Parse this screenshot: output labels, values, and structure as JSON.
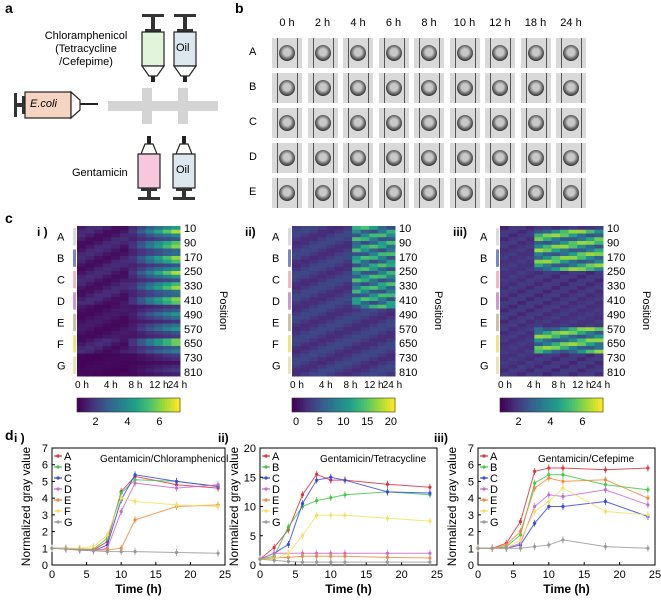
{
  "panel_a": {
    "letter": "a",
    "top_syringe_label": [
      "Chloramphenicol",
      "(Tetracycline",
      "/Cefepime)"
    ],
    "oil_label": "Oil",
    "ecoli_label": "E.coli",
    "gentamicin_label": "Gentamicin",
    "oil_label_bottom": "Oil"
  },
  "panel_b": {
    "letter": "b",
    "times": [
      "0 h",
      "2 h",
      "4 h",
      "6 h",
      "8 h",
      "10 h",
      "12 h",
      "18 h",
      "24 h"
    ],
    "rows": [
      "A",
      "B",
      "C",
      "D",
      "E"
    ]
  },
  "panel_c": {
    "letter": "c",
    "subpanels": [
      {
        "label": "i )",
        "colorbar_ticks": [
          "2",
          "4",
          "6"
        ]
      },
      {
        "label": "ii)",
        "colorbar_ticks": [
          "0",
          "5",
          "10",
          "15",
          "20"
        ]
      },
      {
        "label": "iii)",
        "colorbar_ticks": [
          "2",
          "4",
          "6"
        ]
      }
    ],
    "groups": [
      "A",
      "B",
      "C",
      "D",
      "E",
      "F",
      "G"
    ],
    "group_colors": [
      "#d9d9e8",
      "#7b86c9",
      "#f2b8c0",
      "#c89ad8",
      "#c9c3a2",
      "#f0e57a",
      "#e8e6a8"
    ],
    "positions": [
      "10",
      "90",
      "170",
      "250",
      "330",
      "410",
      "490",
      "570",
      "650",
      "730",
      "810"
    ],
    "position_label": "Position",
    "time_ticks": [
      "0 h",
      "4 h",
      "8 h",
      "12 h",
      "24 h"
    ]
  },
  "panel_d": {
    "letter": "d",
    "legend": [
      "A",
      "B",
      "C",
      "D",
      "E",
      "F",
      "G"
    ],
    "legend_colors": [
      "#e0303f",
      "#41c84a",
      "#3a48e6",
      "#c86bd0",
      "#f08a3c",
      "#f5e060",
      "#999999"
    ]
  },
  "chart_data": [
    {
      "type": "line",
      "panel": "d-i",
      "roman": "i )",
      "title": "Gentamicin/Chloramphenicol",
      "xlabel": "Time (h)",
      "ylabel": "Normalized gray value",
      "xlim": [
        0,
        25
      ],
      "ylim": [
        0,
        7
      ],
      "xticks": [
        "0",
        "5",
        "10",
        "15",
        "20",
        "25"
      ],
      "yticks": [
        "0",
        "1",
        "2",
        "3",
        "4",
        "5",
        "6",
        "7"
      ],
      "x": [
        0,
        2,
        4,
        6,
        8,
        10,
        12,
        18,
        24
      ],
      "series": [
        {
          "name": "A",
          "values": [
            1.0,
            1.0,
            0.95,
            0.9,
            1.4,
            4.4,
            5.3,
            4.8,
            4.6
          ]
        },
        {
          "name": "B",
          "values": [
            1.0,
            1.0,
            0.95,
            0.95,
            1.6,
            4.3,
            5.1,
            5.0,
            4.7
          ]
        },
        {
          "name": "C",
          "values": [
            1.0,
            1.0,
            0.9,
            0.85,
            1.2,
            3.9,
            5.4,
            5.0,
            4.7
          ]
        },
        {
          "name": "D",
          "values": [
            1.0,
            0.95,
            0.9,
            0.85,
            1.0,
            3.2,
            4.9,
            4.6,
            4.8
          ]
        },
        {
          "name": "E",
          "values": [
            1.0,
            1.0,
            0.95,
            0.9,
            0.9,
            1.0,
            2.7,
            3.5,
            3.6
          ]
        },
        {
          "name": "F",
          "values": [
            1.0,
            1.0,
            1.0,
            1.1,
            1.8,
            4.0,
            3.8,
            3.6,
            3.5
          ]
        },
        {
          "name": "G",
          "values": [
            1.0,
            0.95,
            0.9,
            0.85,
            0.8,
            0.8,
            0.8,
            0.75,
            0.7
          ]
        }
      ]
    },
    {
      "type": "line",
      "panel": "d-ii",
      "roman": "ii)",
      "title": "Gentamicin/Tetracycline",
      "xlabel": "Time (h)",
      "ylabel": "Normalized gray value",
      "xlim": [
        0,
        25
      ],
      "ylim": [
        0,
        20
      ],
      "xticks": [
        "0",
        "5",
        "10",
        "15",
        "20",
        "25"
      ],
      "yticks": [
        "0",
        "5",
        "10",
        "15",
        "20"
      ],
      "x": [
        0,
        2,
        4,
        6,
        8,
        10,
        12,
        18,
        24
      ],
      "series": [
        {
          "name": "A",
          "values": [
            1.0,
            3.0,
            6.0,
            12.0,
            15.5,
            14.5,
            14.5,
            13.8,
            13.3
          ]
        },
        {
          "name": "B",
          "values": [
            1.0,
            1.5,
            6.5,
            10.0,
            11.0,
            11.5,
            12.0,
            12.5,
            12.0
          ]
        },
        {
          "name": "C",
          "values": [
            1.0,
            2.0,
            3.5,
            10.5,
            14.5,
            15.0,
            14.5,
            12.5,
            12.3
          ]
        },
        {
          "name": "D",
          "values": [
            1.0,
            2.0,
            2.0,
            2.0,
            2.0,
            2.0,
            2.0,
            2.0,
            2.0
          ]
        },
        {
          "name": "E",
          "values": [
            1.0,
            1.2,
            1.3,
            1.5,
            1.5,
            1.5,
            1.5,
            1.3,
            1.2
          ]
        },
        {
          "name": "F",
          "values": [
            1.0,
            1.0,
            2.0,
            5.0,
            8.5,
            8.5,
            8.5,
            8.0,
            7.5
          ]
        },
        {
          "name": "G",
          "values": [
            1.0,
            0.8,
            0.6,
            0.5,
            0.5,
            0.5,
            0.5,
            0.5,
            0.5
          ]
        }
      ]
    },
    {
      "type": "line",
      "panel": "d-iii",
      "roman": "iii)",
      "title": "Gentamicin/Cefepime",
      "xlabel": "Time (h)",
      "ylabel": "Normalized gray value",
      "xlim": [
        0,
        25
      ],
      "ylim": [
        0,
        7
      ],
      "xticks": [
        "0",
        "5",
        "10",
        "15",
        "20",
        "25"
      ],
      "yticks": [
        "0",
        "1",
        "2",
        "3",
        "4",
        "5",
        "6",
        "7"
      ],
      "x": [
        0,
        2,
        4,
        6,
        8,
        10,
        12,
        18,
        24
      ],
      "series": [
        {
          "name": "A",
          "values": [
            1.0,
            1.0,
            1.3,
            2.6,
            5.6,
            5.8,
            5.8,
            5.7,
            5.8
          ]
        },
        {
          "name": "B",
          "values": [
            1.0,
            1.0,
            1.1,
            1.8,
            4.9,
            5.4,
            5.4,
            4.8,
            4.5
          ]
        },
        {
          "name": "C",
          "values": [
            1.0,
            1.0,
            1.0,
            1.2,
            2.5,
            3.5,
            3.5,
            3.8,
            2.9
          ]
        },
        {
          "name": "D",
          "values": [
            1.0,
            1.0,
            1.0,
            1.3,
            3.5,
            4.2,
            4.1,
            4.5,
            3.6
          ]
        },
        {
          "name": "E",
          "values": [
            1.0,
            1.0,
            1.2,
            2.0,
            4.6,
            5.2,
            5.0,
            5.1,
            4.0
          ]
        },
        {
          "name": "F",
          "values": [
            1.0,
            1.0,
            1.0,
            1.5,
            3.2,
            3.8,
            4.6,
            3.2,
            3.0
          ]
        },
        {
          "name": "G",
          "values": [
            1.0,
            1.0,
            1.0,
            1.0,
            1.1,
            1.2,
            1.5,
            1.1,
            1.0
          ]
        }
      ]
    }
  ]
}
